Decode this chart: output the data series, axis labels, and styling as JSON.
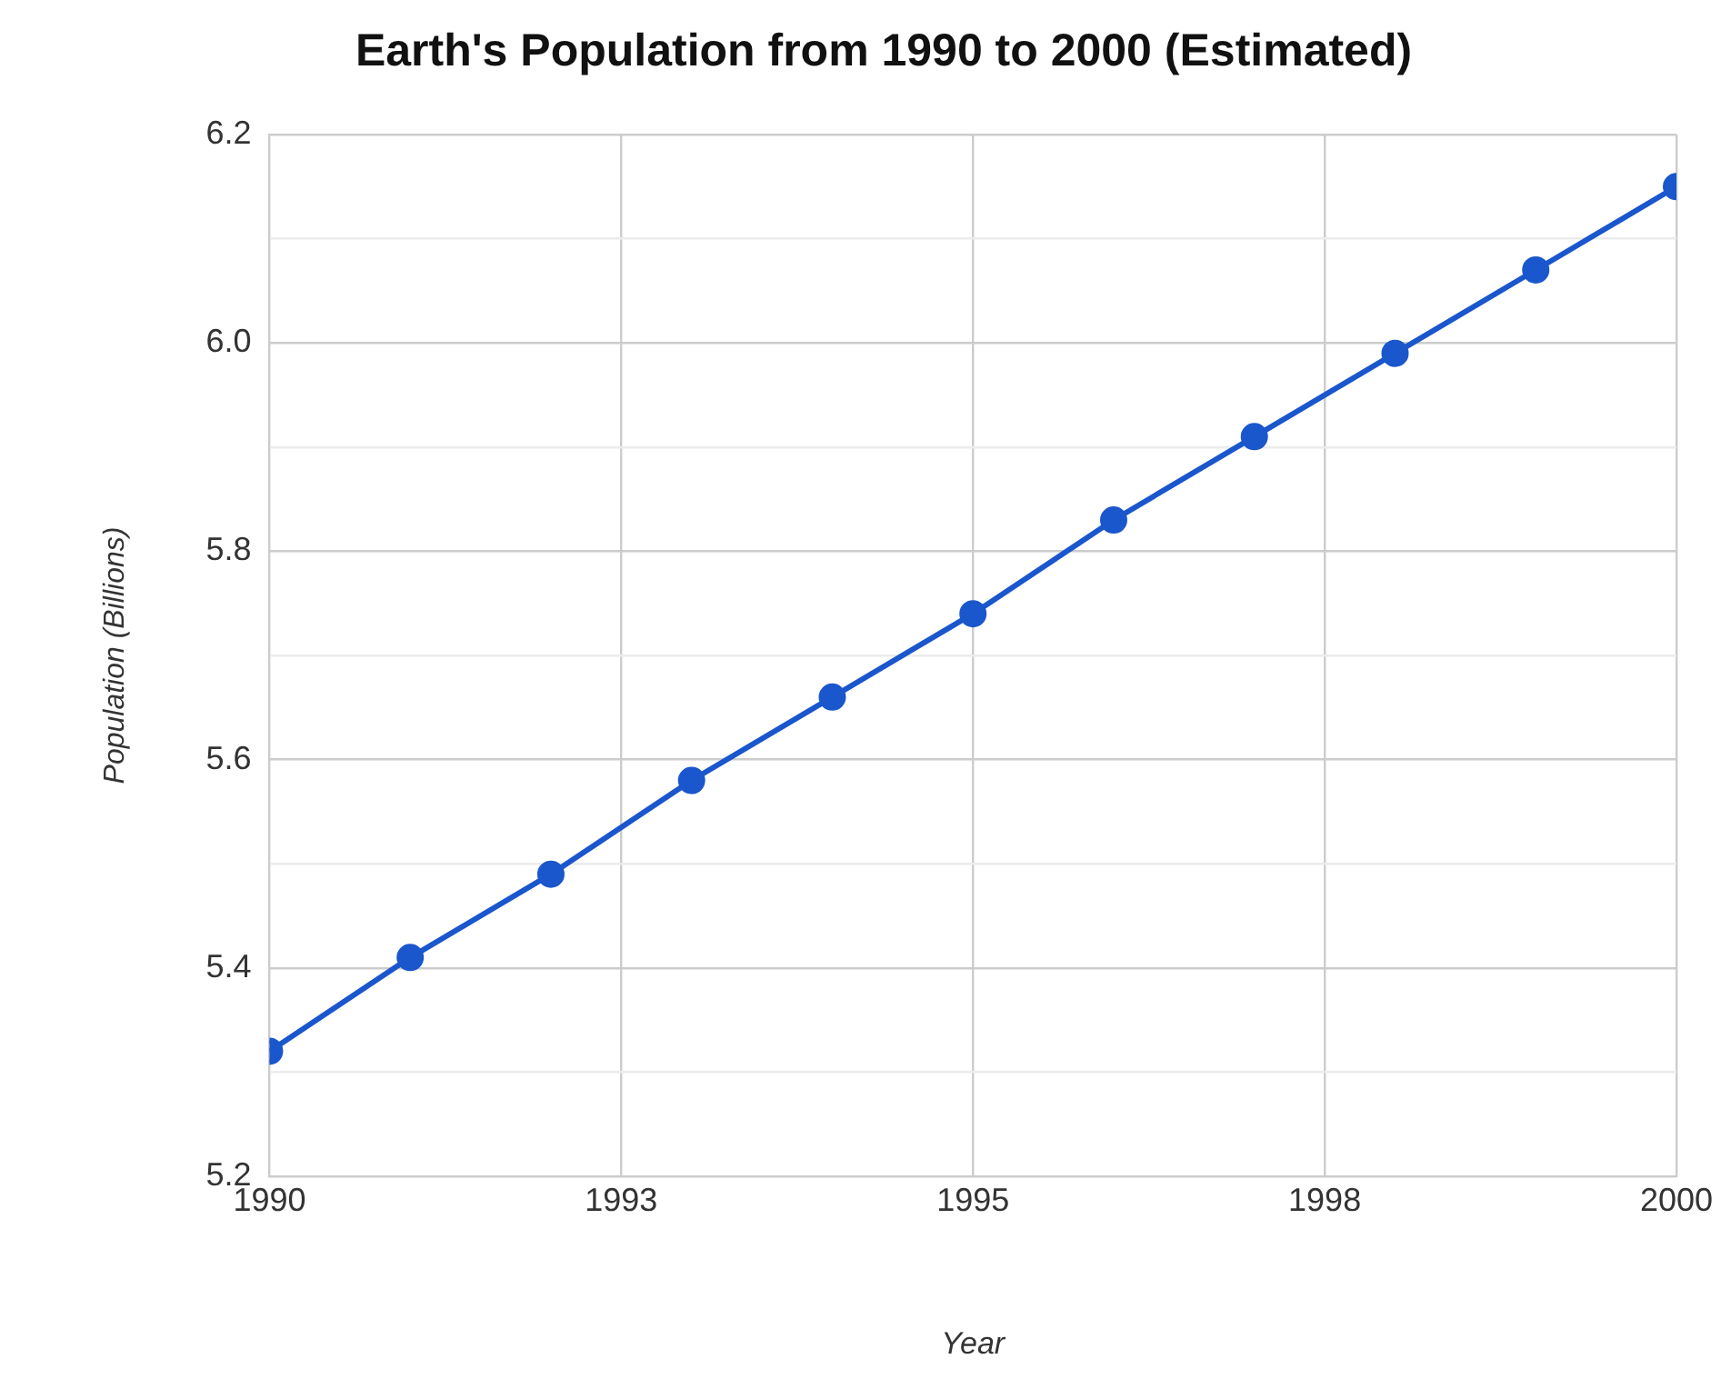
{
  "chart_data": {
    "type": "line",
    "title": "Earth's Population from 1990 to 2000 (Estimated)",
    "xlabel": "Year",
    "ylabel": "Population (Billions)",
    "x": [
      1990,
      1991,
      1992,
      1993,
      1994,
      1995,
      1996,
      1997,
      1998,
      1999,
      2000
    ],
    "series": [
      {
        "color": "#1a56cc",
        "values": [
          5.32,
          5.41,
          5.49,
          5.58,
          5.66,
          5.74,
          5.83,
          5.91,
          5.99,
          6.07,
          6.15
        ]
      }
    ],
    "xlim": [
      1990,
      2000
    ],
    "xticks": [
      1990,
      {
        "value": 1992.5,
        "label": "1993"
      },
      1995,
      {
        "value": 1997.5,
        "label": "1998"
      },
      2000
    ],
    "ylim": [
      5.2,
      6.2
    ],
    "yticks": [
      {
        "value": 5.2,
        "label": "5.2"
      },
      {
        "value": 5.3,
        "label": null
      },
      {
        "value": 5.4,
        "label": "5.4"
      },
      {
        "value": 5.5,
        "label": null
      },
      {
        "value": 5.6,
        "label": "5.6"
      },
      {
        "value": 5.7,
        "label": null
      },
      {
        "value": 5.8,
        "label": "5.8"
      },
      {
        "value": 5.9,
        "label": null
      },
      {
        "value": 6.0,
        "label": "6.0"
      },
      {
        "value": 6.1,
        "label": null
      },
      {
        "value": 6.2,
        "label": "6.2"
      }
    ],
    "grid": true,
    "marker": "circle",
    "line_style": "solid"
  }
}
